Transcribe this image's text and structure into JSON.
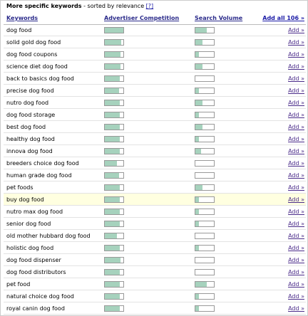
{
  "header": {
    "title": "More specific keywords",
    "subtitle": "- sorted by relevance",
    "help": "[?]"
  },
  "columns": [
    "Keywords",
    "Advertiser Competition",
    "Search Volume"
  ],
  "add_all": "Add all 106 »",
  "bar_max": 100,
  "bar_color": "#a6d2bd",
  "highlighted_row": 14,
  "rows": [
    {
      "keyword": "dog food",
      "competition": 100,
      "volume": 60,
      "action": "Add »"
    },
    {
      "keyword": "solid gold dog food",
      "competition": 90,
      "volume": 40,
      "action": "Add »"
    },
    {
      "keyword": "dog food coupons",
      "competition": 85,
      "volume": 20,
      "action": "Add »"
    },
    {
      "keyword": "science diet dog food",
      "competition": 85,
      "volume": 40,
      "action": "Add »"
    },
    {
      "keyword": "back to basics dog food",
      "competition": 80,
      "volume": 0,
      "action": "Add »"
    },
    {
      "keyword": "precise dog food",
      "competition": 75,
      "volume": 20,
      "action": "Add »"
    },
    {
      "keyword": "nutro dog food",
      "competition": 80,
      "volume": 40,
      "action": "Add »"
    },
    {
      "keyword": "dog food storage",
      "competition": 80,
      "volume": 20,
      "action": "Add »"
    },
    {
      "keyword": "best dog food",
      "competition": 80,
      "volume": 40,
      "action": "Add »"
    },
    {
      "keyword": "healthy dog food",
      "competition": 80,
      "volume": 20,
      "action": "Add »"
    },
    {
      "keyword": "innova dog food",
      "competition": 80,
      "volume": 30,
      "action": "Add »"
    },
    {
      "keyword": "breeders choice dog food",
      "competition": 65,
      "volume": 0,
      "action": "Add »"
    },
    {
      "keyword": "human grade dog food",
      "competition": 75,
      "volume": 0,
      "action": "Add »"
    },
    {
      "keyword": "pet foods",
      "competition": 80,
      "volume": 40,
      "action": "Add »"
    },
    {
      "keyword": "buy dog food",
      "competition": 80,
      "volume": 20,
      "action": "Add »"
    },
    {
      "keyword": "nutro max dog food",
      "competition": 80,
      "volume": 20,
      "action": "Add »"
    },
    {
      "keyword": "senior dog food",
      "competition": 80,
      "volume": 20,
      "action": "Add »"
    },
    {
      "keyword": "old mother hubbard dog food",
      "competition": 65,
      "volume": 0,
      "action": "Add »"
    },
    {
      "keyword": "holistic dog food",
      "competition": 80,
      "volume": 20,
      "action": "Add »"
    },
    {
      "keyword": "dog food dispenser",
      "competition": 85,
      "volume": 0,
      "action": "Add »"
    },
    {
      "keyword": "dog food distributors",
      "competition": 80,
      "volume": 0,
      "action": "Add »"
    },
    {
      "keyword": "pet food",
      "competition": 80,
      "volume": 60,
      "action": "Add »"
    },
    {
      "keyword": "natural choice dog food",
      "competition": 80,
      "volume": 20,
      "action": "Add »"
    },
    {
      "keyword": "royal canin dog food",
      "competition": 80,
      "volume": 20,
      "action": "Add »"
    }
  ]
}
